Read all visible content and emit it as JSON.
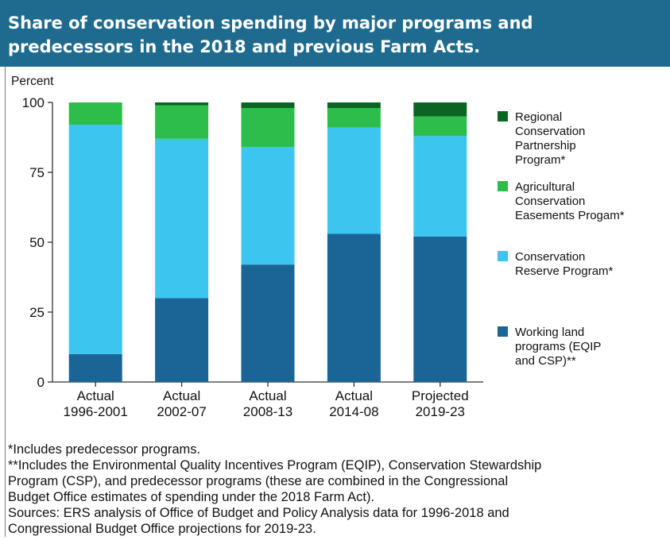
{
  "header": {
    "title": "Share of conservation spending by major programs and predecessors in the 2018 and previous Farm Acts."
  },
  "chart_data": {
    "type": "bar",
    "stacked": true,
    "ylabel": "Percent",
    "ylim": [
      0,
      100
    ],
    "yticks": [
      "0",
      "25",
      "50",
      "75",
      "100"
    ],
    "grid": false,
    "legend_position": "right",
    "categories": [
      [
        "Actual",
        "1996-2001"
      ],
      [
        "Actual",
        "2002-07"
      ],
      [
        "Actual",
        "2008-13"
      ],
      [
        "Actual",
        "2014-08"
      ],
      [
        "Projected",
        "2019-23"
      ]
    ],
    "series": [
      {
        "name": "Working land programs (EQIP and CSP)**",
        "legend_lines": [
          "Working land",
          "programs (EQIP",
          "and CSP)**"
        ],
        "color": "#1a6496",
        "values": [
          10,
          30,
          42,
          53,
          52
        ]
      },
      {
        "name": "Conservation Reserve Program*",
        "legend_lines": [
          "Conservation",
          "Reserve Program*"
        ],
        "color": "#3cc5ef",
        "values": [
          82,
          57,
          42,
          38,
          36
        ]
      },
      {
        "name": "Agricultural Conservation Easements Progam*",
        "legend_lines": [
          "Agricultural",
          "Conservation",
          "Easements Progam*"
        ],
        "color": "#2dbd4b",
        "values": [
          8,
          12,
          14,
          7,
          7
        ]
      },
      {
        "name": "Regional Conservation Partnership Program*",
        "legend_lines": [
          "Regional",
          "Conservation",
          "Partnership",
          "Program*"
        ],
        "color": "#0c6424",
        "values": [
          0,
          1,
          2,
          2,
          5
        ]
      }
    ]
  },
  "notes": [
    "*Includes predecessor programs.",
    "**Includes the Environmental Quality Incentives Program (EQIP), Conservation Stewardship",
    "Program (CSP), and predecessor programs (these are combined in the Congressional",
    "Budget Office estimates of spending under the 2018 Farm Act).",
    "Sources: ERS analysis of Office of Budget and Policy Analysis data for 1996-2018 and",
    "Congressional Budget Office projections for 2019-23."
  ]
}
